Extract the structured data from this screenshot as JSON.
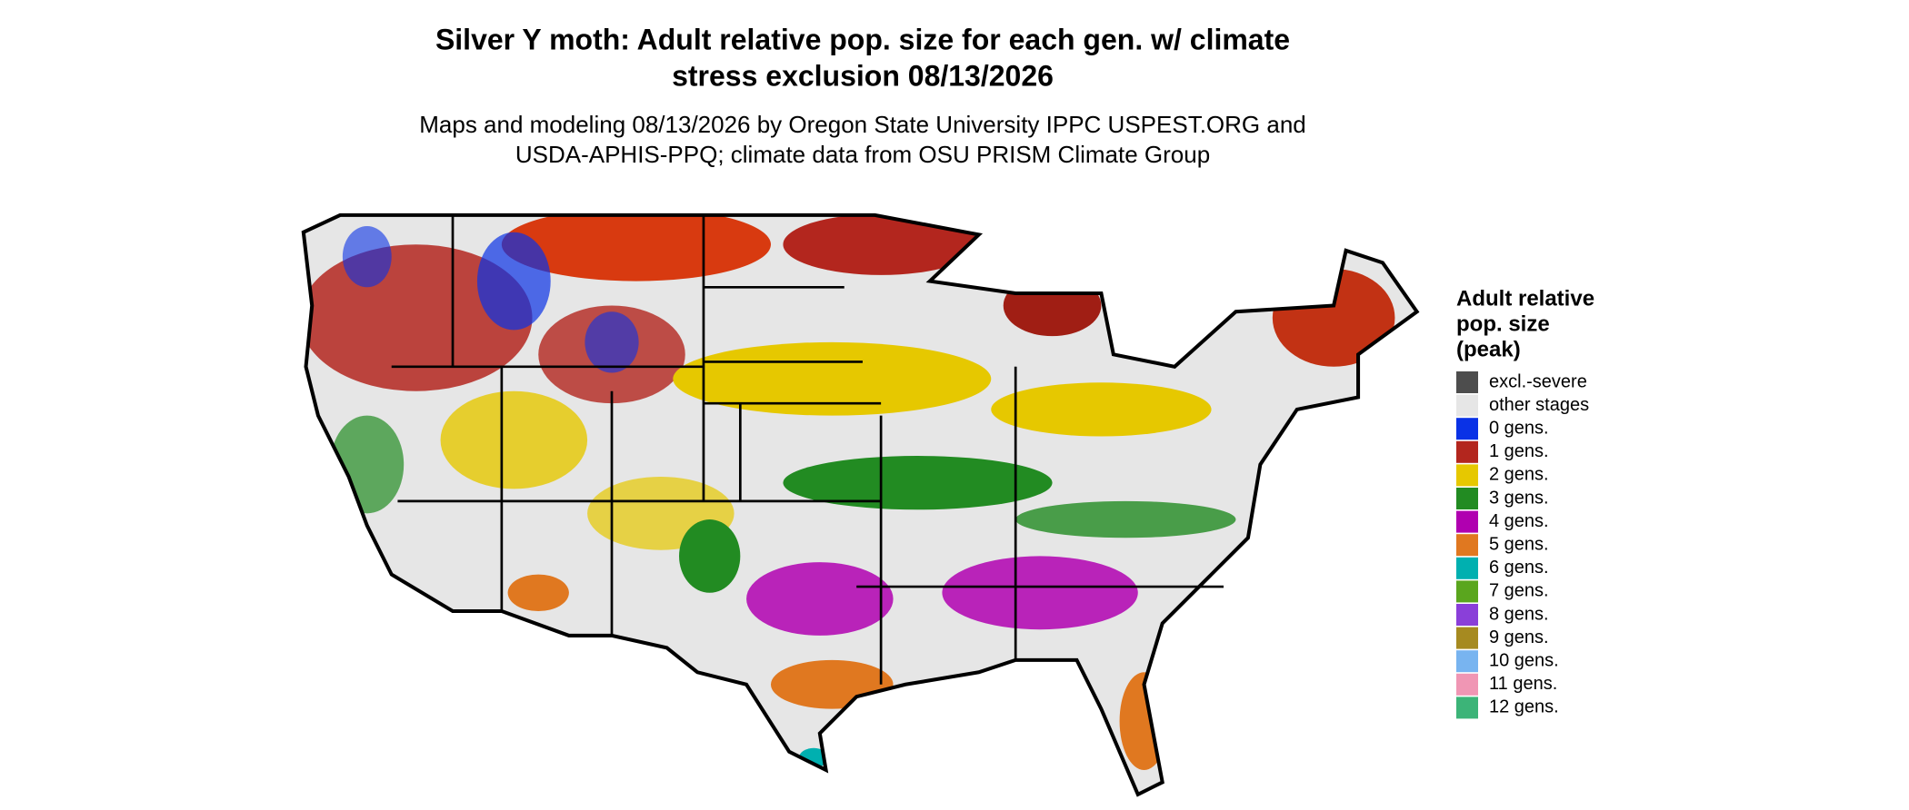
{
  "header": {
    "title_lines": [
      "Silver Y moth: Adult relative pop. size for each gen. w/ climate",
      "stress exclusion 08/13/2026"
    ],
    "subtitle_lines": [
      "Maps and modeling 08/13/2026 by Oregon State University IPPC USPEST.ORG and",
      "USDA-APHIS-PPQ; climate data from OSU PRISM Climate Group"
    ]
  },
  "legend": {
    "title_lines": [
      "Adult relative",
      "pop. size",
      "(peak)"
    ],
    "items": [
      {
        "label": "excl.-severe",
        "color": "#4d4d4d"
      },
      {
        "label": "other stages",
        "color": "#e6e6e6"
      },
      {
        "label": "0 gens.",
        "color": "#0a32e6"
      },
      {
        "label": "1 gens.",
        "color": "#b3261e"
      },
      {
        "label": "2 gens.",
        "color": "#e6c800"
      },
      {
        "label": "3 gens.",
        "color": "#228b22"
      },
      {
        "label": "4 gens.",
        "color": "#b000b0"
      },
      {
        "label": "5 gens.",
        "color": "#e07820"
      },
      {
        "label": "6 gens.",
        "color": "#00b0b0"
      },
      {
        "label": "7 gens.",
        "color": "#5aa61e"
      },
      {
        "label": "8 gens.",
        "color": "#8a3fd9"
      },
      {
        "label": "9 gens.",
        "color": "#a68a20"
      },
      {
        "label": "10 gens.",
        "color": "#78b4f0"
      },
      {
        "label": "11 gens.",
        "color": "#f096b4"
      },
      {
        "label": "12 gens.",
        "color": "#3cb478"
      }
    ]
  }
}
